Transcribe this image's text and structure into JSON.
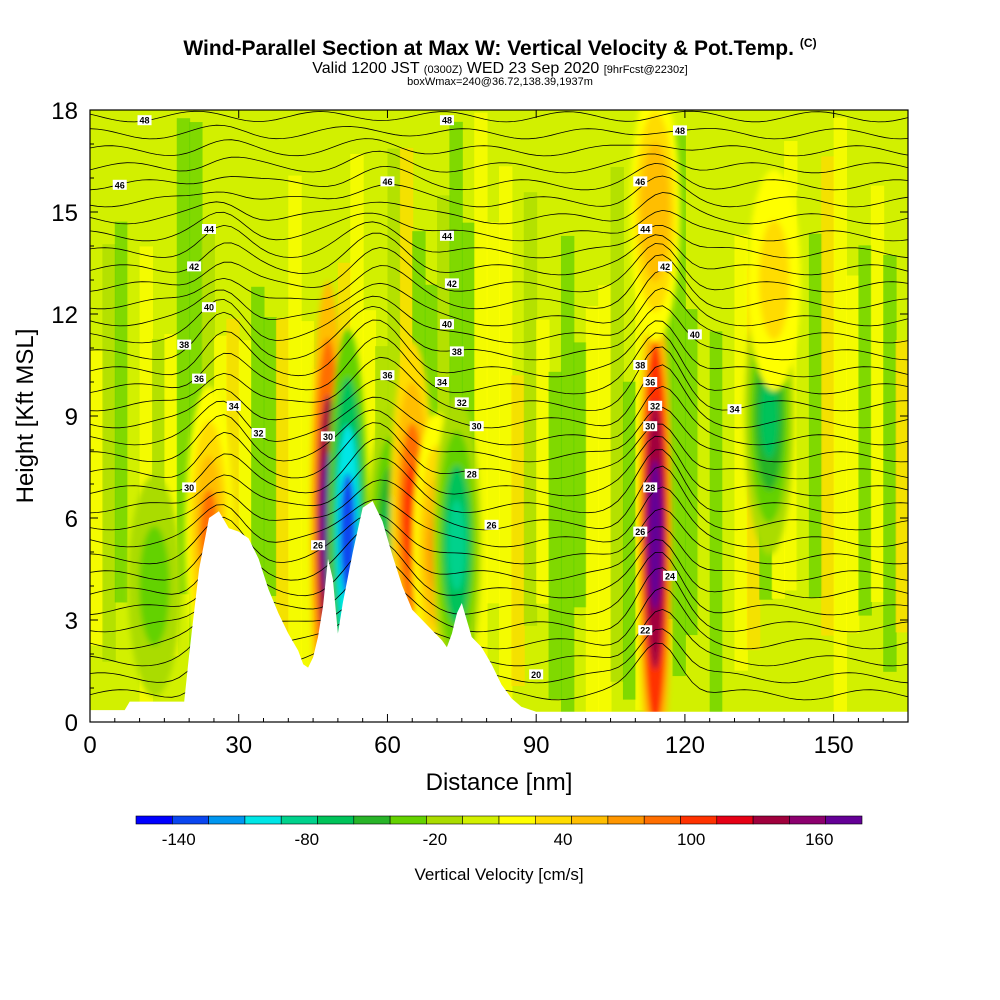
{
  "header": {
    "title": "Wind-Parallel Section at Max W: Vertical Velocity & Pot.Temp.",
    "copyright": "(C)",
    "valid_prefix": "Valid 1200 JST",
    "valid_utc": "(0300Z)",
    "valid_date": "WED 23 Sep 2020",
    "forecast": "[9hrFcst@2230z]",
    "box_info": "boxWmax=240@36.72,138.39,1937m"
  },
  "chart_data": {
    "type": "heatmap",
    "xlabel": "Distance [nm]",
    "ylabel": "Height [Kft MSL]",
    "xlim": [
      0,
      165
    ],
    "ylim": [
      0,
      18
    ],
    "x_ticks": [
      0,
      30,
      60,
      90,
      120,
      150
    ],
    "y_ticks": [
      0,
      3,
      6,
      9,
      12,
      15,
      18
    ],
    "fill_variable": "Vertical Velocity [cm/s]",
    "contour_variable": "Potential Temperature",
    "colorbar": {
      "label": "Vertical Velocity [cm/s]",
      "tick_labels": [
        -140,
        -80,
        -20,
        40,
        100,
        160
      ],
      "bounds": [
        -160,
        180
      ],
      "colors": [
        "#0000ff",
        "#0a46f0",
        "#0096f0",
        "#00e6e6",
        "#00d28c",
        "#00c35a",
        "#28b428",
        "#64d200",
        "#aadc00",
        "#d2f000",
        "#ffff00",
        "#ffdc00",
        "#ffbe00",
        "#ff9600",
        "#ff6e00",
        "#ff3200",
        "#e60014",
        "#a0003c",
        "#8c006e",
        "#640096"
      ]
    },
    "terrain": [
      [
        0,
        0.35
      ],
      [
        7,
        0.35
      ],
      [
        8,
        0.6
      ],
      [
        19,
        0.6
      ],
      [
        20,
        2
      ],
      [
        22,
        4.5
      ],
      [
        24,
        6
      ],
      [
        26,
        6.2
      ],
      [
        28,
        5.7
      ],
      [
        30,
        5.6
      ],
      [
        32,
        5.4
      ],
      [
        34,
        4.8
      ],
      [
        36,
        3.9
      ],
      [
        38,
        3.2
      ],
      [
        40,
        2.6
      ],
      [
        42,
        2.1
      ],
      [
        43,
        1.7
      ],
      [
        44,
        1.6
      ],
      [
        45,
        1.9
      ],
      [
        46,
        2.5
      ],
      [
        47,
        3.4
      ],
      [
        48,
        4.8
      ],
      [
        49,
        4.2
      ],
      [
        50,
        2.6
      ],
      [
        51,
        3.5
      ],
      [
        53,
        5
      ],
      [
        55,
        6.3
      ],
      [
        57,
        6.5
      ],
      [
        59,
        5.9
      ],
      [
        61,
        4.9
      ],
      [
        63,
        4
      ],
      [
        65,
        3.3
      ],
      [
        67,
        3
      ],
      [
        69,
        2.7
      ],
      [
        71,
        2.4
      ],
      [
        72,
        2.2
      ],
      [
        73,
        2.6
      ],
      [
        74,
        3.2
      ],
      [
        75,
        3.5
      ],
      [
        77,
        2.5
      ],
      [
        79,
        2.2
      ],
      [
        81,
        1.7
      ],
      [
        83,
        1.1
      ],
      [
        85,
        0.7
      ],
      [
        87,
        0.45
      ],
      [
        90,
        0.3
      ],
      [
        165,
        0.3
      ]
    ],
    "vertical_velocity_features": [
      {
        "x": 48,
        "y": 5.8,
        "value": 180
      },
      {
        "x": 52,
        "y": 5.5,
        "value": -140
      },
      {
        "x": 61,
        "y": 5.5,
        "value": -60
      },
      {
        "x": 65,
        "y": 6.0,
        "value": 110
      },
      {
        "x": 70,
        "y": 5.0,
        "value": 70
      },
      {
        "x": 74,
        "y": 5.2,
        "value": -80
      },
      {
        "x": 24,
        "y": 5.5,
        "value": 80
      },
      {
        "x": 114,
        "y": 5.5,
        "value": 190
      },
      {
        "x": 114,
        "y": 15,
        "value": 60
      },
      {
        "x": 137,
        "y": 9,
        "value": -70
      },
      {
        "x": 138,
        "y": 13,
        "value": 40
      },
      {
        "x": 13,
        "y": 4,
        "value": -40
      }
    ],
    "theta_contour_labels": [
      {
        "x": 11,
        "y": 17.7,
        "text": "48"
      },
      {
        "x": 6,
        "y": 15.8,
        "text": "46"
      },
      {
        "x": 24,
        "y": 14.5,
        "text": "44"
      },
      {
        "x": 21,
        "y": 13.4,
        "text": "42"
      },
      {
        "x": 24,
        "y": 12.2,
        "text": "40"
      },
      {
        "x": 19,
        "y": 11.1,
        "text": "38"
      },
      {
        "x": 22,
        "y": 10.1,
        "text": "36"
      },
      {
        "x": 29,
        "y": 9.3,
        "text": "34"
      },
      {
        "x": 34,
        "y": 8.5,
        "text": "32"
      },
      {
        "x": 20,
        "y": 6.9,
        "text": "30"
      },
      {
        "x": 72,
        "y": 17.7,
        "text": "48"
      },
      {
        "x": 60,
        "y": 15.9,
        "text": "46"
      },
      {
        "x": 72,
        "y": 14.3,
        "text": "44"
      },
      {
        "x": 73,
        "y": 12.9,
        "text": "42"
      },
      {
        "x": 72,
        "y": 11.7,
        "text": "40"
      },
      {
        "x": 74,
        "y": 10.9,
        "text": "38"
      },
      {
        "x": 60,
        "y": 10.2,
        "text": "36"
      },
      {
        "x": 71,
        "y": 10.0,
        "text": "34"
      },
      {
        "x": 75,
        "y": 9.4,
        "text": "32"
      },
      {
        "x": 78,
        "y": 8.7,
        "text": "30"
      },
      {
        "x": 48,
        "y": 8.4,
        "text": "30"
      },
      {
        "x": 77,
        "y": 7.3,
        "text": "28"
      },
      {
        "x": 81,
        "y": 5.8,
        "text": "26"
      },
      {
        "x": 46,
        "y": 5.2,
        "text": "26"
      },
      {
        "x": 111,
        "y": 15.9,
        "text": "46"
      },
      {
        "x": 119,
        "y": 17.4,
        "text": "48"
      },
      {
        "x": 112,
        "y": 14.5,
        "text": "44"
      },
      {
        "x": 116,
        "y": 13.4,
        "text": "42"
      },
      {
        "x": 122,
        "y": 11.4,
        "text": "40"
      },
      {
        "x": 111,
        "y": 10.5,
        "text": "38"
      },
      {
        "x": 113,
        "y": 10.0,
        "text": "36"
      },
      {
        "x": 114,
        "y": 9.3,
        "text": "32"
      },
      {
        "x": 130,
        "y": 9.2,
        "text": "34"
      },
      {
        "x": 113,
        "y": 8.7,
        "text": "30"
      },
      {
        "x": 113,
        "y": 6.9,
        "text": "28"
      },
      {
        "x": 111,
        "y": 5.6,
        "text": "26"
      },
      {
        "x": 117,
        "y": 4.3,
        "text": "24"
      },
      {
        "x": 112,
        "y": 2.7,
        "text": "22"
      },
      {
        "x": 90,
        "y": 1.4,
        "text": "20"
      }
    ]
  }
}
